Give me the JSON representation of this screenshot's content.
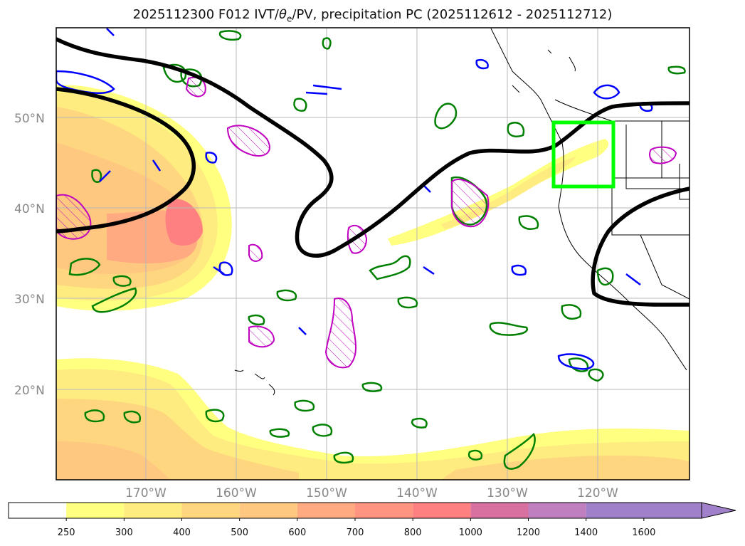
{
  "title": {
    "prefix": "2025112300 F012 IVT/",
    "theta_symbol": "θ",
    "theta_sub": "e",
    "suffix": "/PV, precipitation PC (2025112612 - 2025112712)"
  },
  "map": {
    "lat_labels": [
      "50°N",
      "40°N",
      "30°N",
      "20°N"
    ],
    "lon_labels": [
      "170°W",
      "160°W",
      "150°W",
      "140°W",
      "130°W",
      "120°W"
    ],
    "box_color": "#00ff00",
    "contour_colors": {
      "pv_solid": "#000000",
      "green": "#008000",
      "blue": "#0000ff",
      "magenta": "#c000c0"
    }
  },
  "colorbar": {
    "ticks": [
      "250",
      "300",
      "400",
      "500",
      "600",
      "700",
      "800",
      "1000",
      "1200",
      "1400",
      "1600"
    ],
    "colors": [
      "#ffffff",
      "#ffff80",
      "#ffec80",
      "#ffd680",
      "#ffc880",
      "#ffaa80",
      "#ff9480",
      "#ff8080",
      "#d870a0",
      "#c080c0",
      "#a080c8"
    ]
  }
}
